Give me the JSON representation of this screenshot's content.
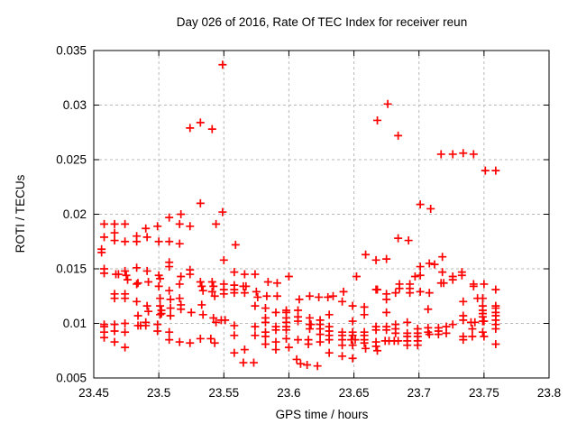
{
  "chart_data": {
    "type": "scatter",
    "title": "Day 026 of 2016, Rate Of TEC Index for receiver reun",
    "xlabel": "GPS time / hours",
    "ylabel": "ROTI / TECUs",
    "xlim": [
      23.45,
      23.8
    ],
    "ylim": [
      0.005,
      0.035
    ],
    "xticks": [
      23.45,
      23.5,
      23.55,
      23.6,
      23.65,
      23.7,
      23.75,
      23.8
    ],
    "xtick_labels": [
      "23.45",
      "23.5",
      "23.55",
      "23.6",
      "23.65",
      "23.7",
      "23.75",
      "23.8"
    ],
    "yticks": [
      0.005,
      0.01,
      0.015,
      0.02,
      0.025,
      0.03,
      0.035
    ],
    "ytick_labels": [
      "0.005",
      "0.01",
      "0.015",
      "0.02",
      "0.025",
      "0.03",
      "0.035"
    ],
    "grid": true,
    "legend": "none",
    "marker": "plus",
    "marker_color": "#ff0000",
    "grid_color": "#b8b8b8",
    "frame_color": "#000000",
    "points": [
      [
        23.549,
        0.0337
      ],
      [
        23.524,
        0.0279
      ],
      [
        23.532,
        0.0284
      ],
      [
        23.541,
        0.0278
      ],
      [
        23.676,
        0.0301
      ],
      [
        23.668,
        0.0286
      ],
      [
        23.684,
        0.0272
      ],
      [
        23.717,
        0.0255
      ],
      [
        23.726,
        0.0255
      ],
      [
        23.734,
        0.0256
      ],
      [
        23.742,
        0.0255
      ],
      [
        23.751,
        0.024
      ],
      [
        23.759,
        0.024
      ],
      [
        23.701,
        0.0209
      ],
      [
        23.709,
        0.0205
      ],
      [
        23.532,
        0.021
      ],
      [
        23.517,
        0.02
      ],
      [
        23.508,
        0.0197
      ],
      [
        23.549,
        0.0202
      ],
      [
        23.458,
        0.0191
      ],
      [
        23.466,
        0.0191
      ],
      [
        23.474,
        0.0191
      ],
      [
        23.49,
        0.0187
      ],
      [
        23.499,
        0.0189
      ],
      [
        23.516,
        0.0191
      ],
      [
        23.524,
        0.0189
      ],
      [
        23.544,
        0.0191
      ],
      [
        23.458,
        0.0179
      ],
      [
        23.466,
        0.0183
      ],
      [
        23.466,
        0.0176
      ],
      [
        23.474,
        0.0175
      ],
      [
        23.483,
        0.018
      ],
      [
        23.483,
        0.0175
      ],
      [
        23.491,
        0.0179
      ],
      [
        23.5,
        0.0175
      ],
      [
        23.508,
        0.0175
      ],
      [
        23.516,
        0.0173
      ],
      [
        23.456,
        0.0168
      ],
      [
        23.456,
        0.0165
      ],
      [
        23.559,
        0.0172
      ],
      [
        23.55,
        0.0158
      ],
      [
        23.684,
        0.0178
      ],
      [
        23.692,
        0.0176
      ],
      [
        23.659,
        0.0163
      ],
      [
        23.667,
        0.0158
      ],
      [
        23.675,
        0.0159
      ],
      [
        23.718,
        0.0161
      ],
      [
        23.458,
        0.015
      ],
      [
        23.458,
        0.0146
      ],
      [
        23.467,
        0.0145
      ],
      [
        23.469,
        0.0145
      ],
      [
        23.474,
        0.0148
      ],
      [
        23.475,
        0.0144
      ],
      [
        23.476,
        0.014
      ],
      [
        23.483,
        0.0151
      ],
      [
        23.484,
        0.0137
      ],
      [
        23.491,
        0.0148
      ],
      [
        23.492,
        0.0138
      ],
      [
        23.5,
        0.0144
      ],
      [
        23.501,
        0.0141
      ],
      [
        23.508,
        0.0156
      ],
      [
        23.508,
        0.0152
      ],
      [
        23.517,
        0.0143
      ],
      [
        23.524,
        0.0149
      ],
      [
        23.524,
        0.0145
      ],
      [
        23.558,
        0.0147
      ],
      [
        23.566,
        0.0145
      ],
      [
        23.574,
        0.0145
      ],
      [
        23.584,
        0.0138
      ],
      [
        23.591,
        0.0137
      ],
      [
        23.6,
        0.0143
      ],
      [
        23.652,
        0.0143
      ],
      [
        23.701,
        0.0152
      ],
      [
        23.708,
        0.0155
      ],
      [
        23.712,
        0.0154
      ],
      [
        23.701,
        0.0144
      ],
      [
        23.718,
        0.0147
      ],
      [
        23.697,
        0.0143
      ],
      [
        23.726,
        0.0143
      ],
      [
        23.726,
        0.014
      ],
      [
        23.733,
        0.0147
      ],
      [
        23.733,
        0.0144
      ],
      [
        23.719,
        0.0137
      ],
      [
        23.5,
        0.0134
      ],
      [
        23.508,
        0.013
      ],
      [
        23.516,
        0.0136
      ],
      [
        23.483,
        0.0136
      ],
      [
        23.466,
        0.0127
      ],
      [
        23.474,
        0.0127
      ],
      [
        23.532,
        0.0138
      ],
      [
        23.533,
        0.0134
      ],
      [
        23.534,
        0.013
      ],
      [
        23.541,
        0.0138
      ],
      [
        23.542,
        0.0134
      ],
      [
        23.541,
        0.0129
      ],
      [
        23.543,
        0.0125
      ],
      [
        23.55,
        0.0136
      ],
      [
        23.55,
        0.0131
      ],
      [
        23.55,
        0.0127
      ],
      [
        23.558,
        0.0135
      ],
      [
        23.558,
        0.0131
      ],
      [
        23.558,
        0.0128
      ],
      [
        23.565,
        0.0134
      ],
      [
        23.567,
        0.0134
      ],
      [
        23.566,
        0.0128
      ],
      [
        23.575,
        0.0129
      ],
      [
        23.576,
        0.0124
      ],
      [
        23.583,
        0.0125
      ],
      [
        23.591,
        0.0125
      ],
      [
        23.608,
        0.0122
      ],
      [
        23.616,
        0.0125
      ],
      [
        23.623,
        0.0124
      ],
      [
        23.63,
        0.0124
      ],
      [
        23.634,
        0.0125
      ],
      [
        23.642,
        0.0129
      ],
      [
        23.667,
        0.0131
      ],
      [
        23.668,
        0.0131
      ],
      [
        23.675,
        0.0127
      ],
      [
        23.675,
        0.0122
      ],
      [
        23.682,
        0.0128
      ],
      [
        23.685,
        0.0136
      ],
      [
        23.685,
        0.0132
      ],
      [
        23.693,
        0.0136
      ],
      [
        23.693,
        0.0132
      ],
      [
        23.693,
        0.0128
      ],
      [
        23.701,
        0.0129
      ],
      [
        23.708,
        0.0128
      ],
      [
        23.717,
        0.0137
      ],
      [
        23.742,
        0.0136
      ],
      [
        23.742,
        0.0134
      ],
      [
        23.75,
        0.0136
      ],
      [
        23.759,
        0.0131
      ],
      [
        23.745,
        0.0123
      ],
      [
        23.749,
        0.0123
      ],
      [
        23.466,
        0.0123
      ],
      [
        23.474,
        0.0123
      ],
      [
        23.483,
        0.012
      ],
      [
        23.491,
        0.0116
      ],
      [
        23.492,
        0.0111
      ],
      [
        23.484,
        0.0107
      ],
      [
        23.501,
        0.0123
      ],
      [
        23.501,
        0.0116
      ],
      [
        23.502,
        0.0112
      ],
      [
        23.502,
        0.0109
      ],
      [
        23.501,
        0.0108
      ],
      [
        23.509,
        0.0122
      ],
      [
        23.509,
        0.0114
      ],
      [
        23.509,
        0.0107
      ],
      [
        23.516,
        0.0123
      ],
      [
        23.517,
        0.0117
      ],
      [
        23.517,
        0.0113
      ],
      [
        23.525,
        0.011
      ],
      [
        23.533,
        0.0117
      ],
      [
        23.534,
        0.0108
      ],
      [
        23.542,
        0.0105
      ],
      [
        23.544,
        0.0101
      ],
      [
        23.458,
        0.0099
      ],
      [
        23.458,
        0.0097
      ],
      [
        23.466,
        0.0099
      ],
      [
        23.474,
        0.01
      ],
      [
        23.484,
        0.0098
      ],
      [
        23.486,
        0.0098
      ],
      [
        23.49,
        0.0101
      ],
      [
        23.49,
        0.0098
      ],
      [
        23.499,
        0.0099
      ],
      [
        23.458,
        0.0092
      ],
      [
        23.466,
        0.0093
      ],
      [
        23.474,
        0.0092
      ],
      [
        23.458,
        0.0087
      ],
      [
        23.466,
        0.0083
      ],
      [
        23.474,
        0.0078
      ],
      [
        23.499,
        0.0093
      ],
      [
        23.508,
        0.0092
      ],
      [
        23.508,
        0.0085
      ],
      [
        23.516,
        0.0083
      ],
      [
        23.524,
        0.0082
      ],
      [
        23.532,
        0.0086
      ],
      [
        23.54,
        0.0086
      ],
      [
        23.543,
        0.0082
      ],
      [
        23.548,
        0.0103
      ],
      [
        23.551,
        0.0103
      ],
      [
        23.558,
        0.0098
      ],
      [
        23.558,
        0.0089
      ],
      [
        23.558,
        0.0073
      ],
      [
        23.565,
        0.0064
      ],
      [
        23.573,
        0.0064
      ],
      [
        23.566,
        0.0076
      ],
      [
        23.574,
        0.0116
      ],
      [
        23.574,
        0.0097
      ],
      [
        23.574,
        0.0089
      ],
      [
        23.582,
        0.0114
      ],
      [
        23.582,
        0.0105
      ],
      [
        23.582,
        0.0101
      ],
      [
        23.582,
        0.0092
      ],
      [
        23.582,
        0.0088
      ],
      [
        23.582,
        0.0081
      ],
      [
        23.59,
        0.011
      ],
      [
        23.59,
        0.0097
      ],
      [
        23.59,
        0.0094
      ],
      [
        23.59,
        0.0083
      ],
      [
        23.59,
        0.0076
      ],
      [
        23.598,
        0.0112
      ],
      [
        23.598,
        0.011
      ],
      [
        23.598,
        0.0105
      ],
      [
        23.598,
        0.0101
      ],
      [
        23.598,
        0.0097
      ],
      [
        23.598,
        0.0094
      ],
      [
        23.598,
        0.0086
      ],
      [
        23.6,
        0.0078
      ],
      [
        23.607,
        0.0112
      ],
      [
        23.607,
        0.0106
      ],
      [
        23.607,
        0.0102
      ],
      [
        23.607,
        0.0085
      ],
      [
        23.606,
        0.0067
      ],
      [
        23.609,
        0.0063
      ],
      [
        23.616,
        0.0105
      ],
      [
        23.616,
        0.0099
      ],
      [
        23.617,
        0.0099
      ],
      [
        23.616,
        0.0095
      ],
      [
        23.615,
        0.0085
      ],
      [
        23.615,
        0.0081
      ],
      [
        23.614,
        0.0062
      ],
      [
        23.624,
        0.0103
      ],
      [
        23.624,
        0.0099
      ],
      [
        23.624,
        0.0095
      ],
      [
        23.624,
        0.009
      ],
      [
        23.624,
        0.0083
      ],
      [
        23.622,
        0.0061
      ],
      [
        23.631,
        0.0108
      ],
      [
        23.631,
        0.0097
      ],
      [
        23.631,
        0.0093
      ],
      [
        23.631,
        0.0089
      ],
      [
        23.631,
        0.0085
      ],
      [
        23.631,
        0.0073
      ],
      [
        23.641,
        0.012
      ],
      [
        23.641,
        0.0092
      ],
      [
        23.641,
        0.0089
      ],
      [
        23.641,
        0.0085
      ],
      [
        23.641,
        0.008
      ],
      [
        23.641,
        0.007
      ],
      [
        23.649,
        0.0116
      ],
      [
        23.649,
        0.0102
      ],
      [
        23.649,
        0.0092
      ],
      [
        23.649,
        0.0089
      ],
      [
        23.648,
        0.0085
      ],
      [
        23.651,
        0.0085
      ],
      [
        23.649,
        0.008
      ],
      [
        23.649,
        0.0068
      ],
      [
        23.658,
        0.0115
      ],
      [
        23.658,
        0.0108
      ],
      [
        23.658,
        0.0092
      ],
      [
        23.658,
        0.0089
      ],
      [
        23.658,
        0.0085
      ],
      [
        23.658,
        0.0082
      ],
      [
        23.659,
        0.0077
      ],
      [
        23.667,
        0.0097
      ],
      [
        23.667,
        0.0094
      ],
      [
        23.667,
        0.0083
      ],
      [
        23.667,
        0.0079
      ],
      [
        23.668,
        0.0075
      ],
      [
        23.675,
        0.011
      ],
      [
        23.675,
        0.0097
      ],
      [
        23.675,
        0.0094
      ],
      [
        23.674,
        0.0084
      ],
      [
        23.677,
        0.0084
      ],
      [
        23.682,
        0.0099
      ],
      [
        23.682,
        0.0095
      ],
      [
        23.682,
        0.0091
      ],
      [
        23.681,
        0.0084
      ],
      [
        23.684,
        0.0084
      ],
      [
        23.691,
        0.0101
      ],
      [
        23.691,
        0.0091
      ],
      [
        23.691,
        0.0088
      ],
      [
        23.691,
        0.0084
      ],
      [
        23.691,
        0.008
      ],
      [
        23.699,
        0.0095
      ],
      [
        23.699,
        0.0091
      ],
      [
        23.699,
        0.0088
      ],
      [
        23.699,
        0.0084
      ],
      [
        23.699,
        0.008
      ],
      [
        23.707,
        0.0113
      ],
      [
        23.707,
        0.0096
      ],
      [
        23.707,
        0.0092
      ],
      [
        23.708,
        0.009
      ],
      [
        23.715,
        0.0096
      ],
      [
        23.715,
        0.0093
      ],
      [
        23.715,
        0.009
      ],
      [
        23.721,
        0.0097
      ],
      [
        23.721,
        0.0091
      ],
      [
        23.726,
        0.0099
      ],
      [
        23.734,
        0.012
      ],
      [
        23.734,
        0.0107
      ],
      [
        23.734,
        0.0103
      ],
      [
        23.734,
        0.0088
      ],
      [
        23.734,
        0.0085
      ],
      [
        23.74,
        0.0101
      ],
      [
        23.743,
        0.0101
      ],
      [
        23.741,
        0.0095
      ],
      [
        23.741,
        0.0088
      ],
      [
        23.749,
        0.0116
      ],
      [
        23.749,
        0.0112
      ],
      [
        23.749,
        0.0109
      ],
      [
        23.749,
        0.0106
      ],
      [
        23.749,
        0.0102
      ],
      [
        23.75,
        0.0102
      ],
      [
        23.749,
        0.0092
      ],
      [
        23.75,
        0.0088
      ],
      [
        23.759,
        0.0116
      ],
      [
        23.759,
        0.0114
      ],
      [
        23.759,
        0.011
      ],
      [
        23.759,
        0.0107
      ],
      [
        23.759,
        0.0103
      ],
      [
        23.759,
        0.0099
      ],
      [
        23.759,
        0.0095
      ],
      [
        23.759,
        0.0081
      ]
    ]
  }
}
